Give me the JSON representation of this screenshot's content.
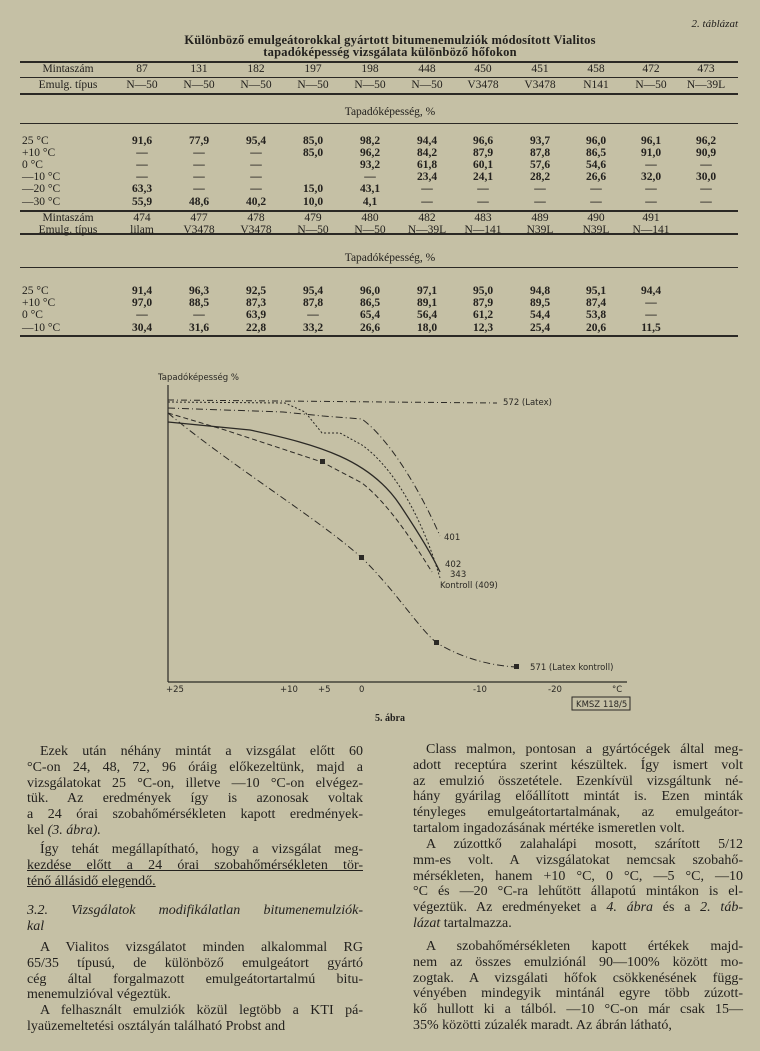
{
  "table": {
    "label": "2. táblázat",
    "title_lines": [
      "Különböző emulgeátorokkal gyártott bitumenemulziók módosított Vialitos",
      "tapadóképesség vizsgálata különböző hőfokon"
    ],
    "blocks": [
      {
        "sample_label": "Mintaszám",
        "type_label": "Emulg. típus",
        "samples": [
          "87",
          "131",
          "182",
          "197",
          "198",
          "448",
          "450",
          "451",
          "458",
          "472",
          "473"
        ],
        "types": [
          "N—50",
          "N—50",
          "N—50",
          "N—50",
          "N—50",
          "N—50",
          "V3478",
          "V3478",
          "N141",
          "N—50",
          "N—39L"
        ],
        "section_label": "Tapadóképesség, %",
        "rows": [
          {
            "temp": "25 °C",
            "values": [
              "91,6",
              "77,9",
              "95,4",
              "85,0",
              "98,2",
              "94,4",
              "96,6",
              "93,7",
              "96,0",
              "96,1",
              "96,2"
            ]
          },
          {
            "temp": "+10 °C",
            "values": [
              "—",
              "—",
              "—",
              "85,0",
              "96,2",
              "84,2",
              "87,9",
              "87,8",
              "86,5",
              "91,0",
              "90,9"
            ]
          },
          {
            "temp": "0 °C",
            "values": [
              "—",
              "—",
              "—",
              "",
              "93,2",
              "61,8",
              "60,1",
              "57,6",
              "54,6",
              "—",
              "—"
            ]
          },
          {
            "temp": "—10 °C",
            "values": [
              "—",
              "—",
              "—",
              "",
              "—",
              "23,4",
              "24,1",
              "28,2",
              "26,6",
              "32,0",
              "30,0"
            ]
          },
          {
            "temp": "—20 °C",
            "values": [
              "63,3",
              "—",
              "—",
              "15,0",
              "43,1",
              "—",
              "—",
              "—",
              "—",
              "—",
              "—"
            ]
          },
          {
            "temp": "—30 °C",
            "values": [
              "55,9",
              "48,6",
              "40,2",
              "10,0",
              "4,1",
              "—",
              "—",
              "—",
              "—",
              "—",
              "—"
            ]
          }
        ]
      },
      {
        "sample_label": "Mintaszám",
        "type_label": "Emulg. típus",
        "samples": [
          "474",
          "477",
          "478",
          "479",
          "480",
          "482",
          "483",
          "489",
          "490",
          "491"
        ],
        "types": [
          "lilam",
          "V3478",
          "V3478",
          "N—50",
          "N—50",
          "N—39L",
          "N—141",
          "N39L",
          "N39L",
          "N—141"
        ],
        "section_label": "Tapadóképesség, %",
        "rows": [
          {
            "temp": "25 °C",
            "values": [
              "91,4",
              "96,3",
              "92,5",
              "95,4",
              "96,0",
              "97,1",
              "95,0",
              "94,8",
              "95,1",
              "94,4"
            ]
          },
          {
            "temp": "+10 °C",
            "values": [
              "97,0",
              "88,5",
              "87,3",
              "87,8",
              "86,5",
              "89,1",
              "87,9",
              "89,5",
              "87,4",
              "—"
            ]
          },
          {
            "temp": "0 °C",
            "values": [
              "—",
              "—",
              "63,9",
              "—",
              "65,4",
              "56,4",
              "61,2",
              "54,4",
              "53,8",
              "—"
            ]
          },
          {
            "temp": "—10 °C",
            "values": [
              "30,4",
              "31,6",
              "22,8",
              "33,2",
              "26,6",
              "18,0",
              "12,3",
              "25,4",
              "20,6",
              "11,5"
            ]
          }
        ]
      }
    ]
  },
  "figure": {
    "y_axis_label": "Tapadóképesség %",
    "x_ticks": [
      "+25",
      "+10",
      "+5",
      "0",
      "-10",
      "-20"
    ],
    "x_unit": "°C",
    "curve_labels": {
      "latex": "572 (Latex)",
      "c401": "401",
      "c402": "402",
      "c343": "343",
      "kontroll": "Kontroll (409)",
      "latex_kontroll": "571 (Latex kontroll)"
    },
    "code": "KMSZ 118/5",
    "caption": "5. ábra"
  },
  "body": {
    "left": [
      {
        "lines": [
          [
            {
              "text": "Ezek után néhány mintát a vizsgálat előtt 60"
            }
          ],
          [
            {
              "text": "°C-on 24, 48, 72, 96 óráig előkezeltünk, majd a"
            }
          ],
          [
            {
              "text": "vizsgálatokat 25 °C-on, illetve —10 °C-on elvégez-"
            }
          ],
          [
            {
              "text": "tük. Az eredmények így is azonosak voltak"
            }
          ],
          [
            {
              "text": "a 24 órai szobahőmérsékleten kapott eredmények-"
            }
          ],
          [
            {
              "text": "kel "
            },
            {
              "text": "(3. ábra).",
              "italic": true
            }
          ]
        ]
      },
      {
        "lines": [
          [
            {
              "text": "Így tehát megállapítható, hogy a vizsgálat meg-"
            }
          ],
          [
            {
              "text": "kezdése előtt a 24 órai szobahőmérsékleten tör-",
              "underline": true
            }
          ],
          [
            {
              "text": "ténő állásidő elegendő.",
              "underline": true
            }
          ]
        ]
      },
      {
        "heading": true,
        "lines": [
          [
            {
              "text": "3.2. Vizsgálatok modifikálatlan bitumenemulziók-"
            }
          ],
          [
            {
              "text": "kal"
            }
          ]
        ]
      },
      {
        "lines": [
          [
            {
              "text": "A Vialitos vizsgálatot minden alkalommal RG"
            }
          ],
          [
            {
              "text": "65/35 típusú, de különböző emulgeátort gyártó"
            }
          ],
          [
            {
              "text": "cég által forgalmazott emulgeátortartalmú bitu-"
            }
          ],
          [
            {
              "text": "menemulzióval végeztük."
            }
          ]
        ]
      },
      {
        "lines": [
          [
            {
              "text": "A felhasznált emulziók közül legtöbb a KTI pá-"
            }
          ],
          [
            {
              "text": "lyaüzemeltetési osztályán található Probst and"
            }
          ]
        ]
      }
    ],
    "right": [
      {
        "lines": [
          [
            {
              "text": "Class malmon, pontosan a gyártócégek által meg-"
            }
          ],
          [
            {
              "text": "adott receptúra szerint készültek. Így ismert volt"
            }
          ],
          [
            {
              "text": "az emulzió összetétele. Ezenkívül vizsgáltunk né-"
            }
          ],
          [
            {
              "text": "hány gyárilag előállított mintát is. Ezen minták"
            }
          ],
          [
            {
              "text": "tényleges emulgeátortartalmának, az emulgeátor-"
            }
          ],
          [
            {
              "text": "tartalom ingadozásának mértéke ismeretlen volt."
            }
          ]
        ]
      },
      {
        "lines": [
          [
            {
              "text": "A zúzottkő zalahalápi mosott, szárított 5/12"
            }
          ],
          [
            {
              "text": "mm-es volt. A vizsgálatokat nemcsak szobahő-"
            }
          ],
          [
            {
              "text": "mérsékleten, hanem +10 °C, 0 °C, —5 °C, —10"
            }
          ],
          [
            {
              "text": "°C és —20 °C-ra lehűtött állapotú mintákon is el-"
            }
          ],
          [
            {
              "text": "végeztük. Az eredményeket a "
            },
            {
              "text": "4. ábra",
              "italic": true
            },
            {
              "text": " és a "
            },
            {
              "text": "2. táb-",
              "italic": true
            }
          ],
          [
            {
              "text": "lázat",
              "italic": true
            },
            {
              "text": " tartalmazza."
            }
          ]
        ]
      },
      {
        "lines": [
          [
            {
              "text": "A szobahőmérsékleten kapott értékek majd-"
            }
          ],
          [
            {
              "text": "nem az összes emulziónál 90—100% között mo-"
            }
          ],
          [
            {
              "text": "zogtak. A vizsgálati hőfok csökkenésének függ-"
            }
          ],
          [
            {
              "text": "vényében mindegyik mintánál egyre több zúzott-"
            }
          ],
          [
            {
              "text": "kő hullott ki a tálból. —10 °C-on már csak 15—"
            }
          ],
          [
            {
              "text": "35% közötti zúzalék maradt. Az ábrán látható,"
            }
          ]
        ]
      }
    ]
  }
}
